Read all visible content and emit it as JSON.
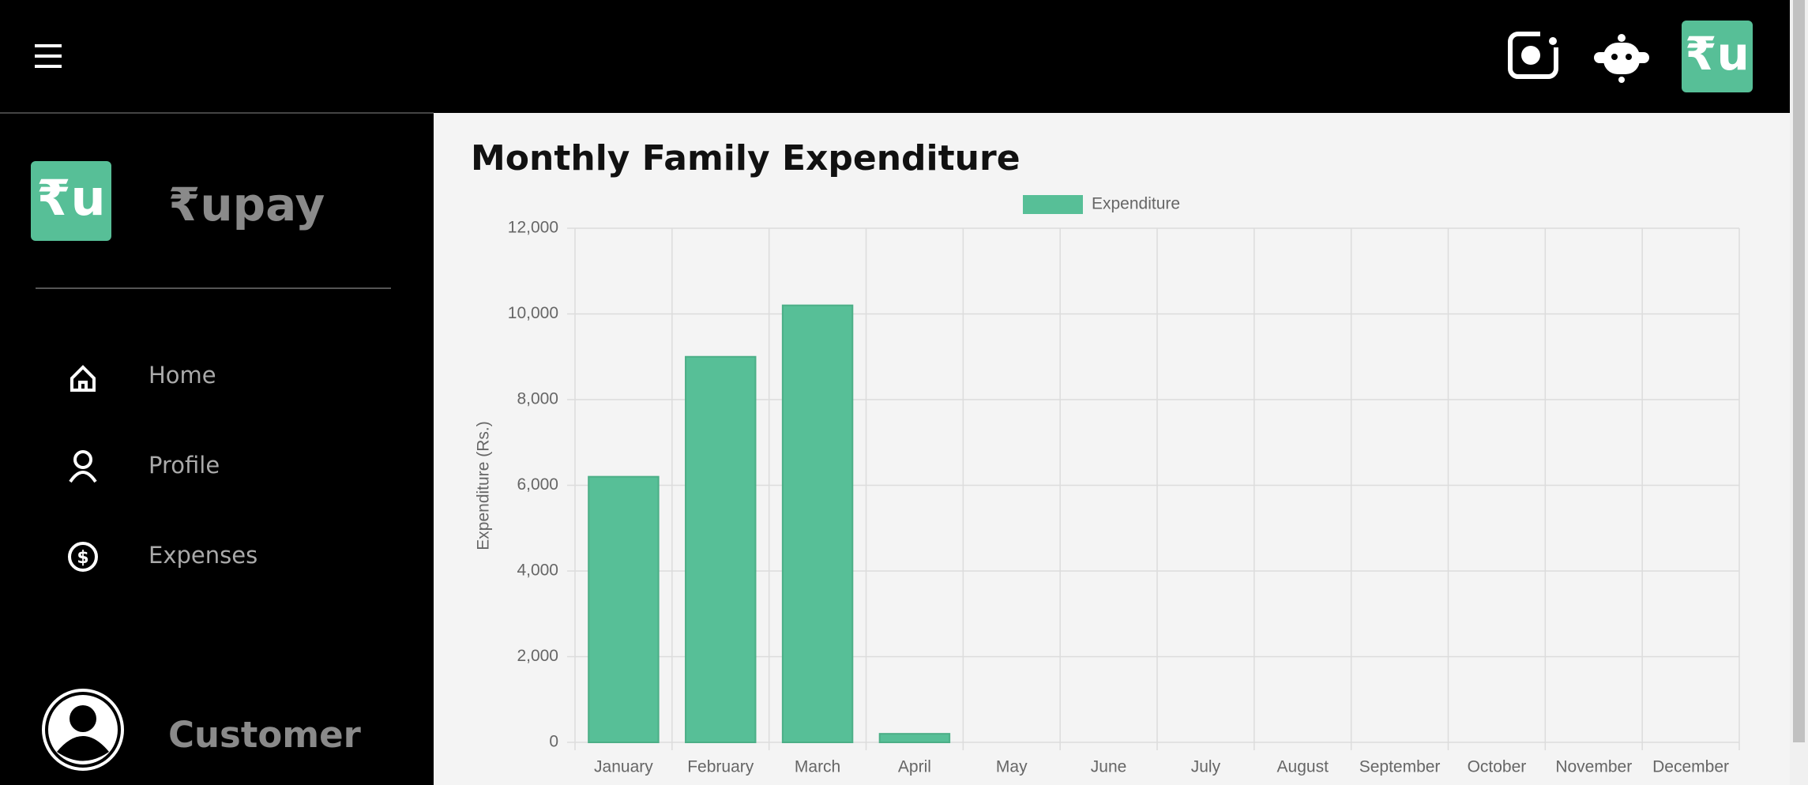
{
  "logo_text": "₹u",
  "sidebar": {
    "brand": "₹upay",
    "nav": [
      "Home",
      "Profile",
      "Expenses"
    ],
    "user": "Customer"
  },
  "chart_data": {
    "type": "bar",
    "title": "Monthly Family Expenditure",
    "y_label": "Expenditure (Rs.)",
    "categories": [
      "January",
      "February",
      "March",
      "April",
      "May",
      "June",
      "July",
      "August",
      "September",
      "October",
      "November",
      "December"
    ],
    "series": [
      {
        "name": "Expenditure",
        "color": "#57bf97",
        "values": [
          6200,
          9000,
          10200,
          200,
          0,
          0,
          0,
          0,
          0,
          0,
          0,
          0
        ]
      }
    ],
    "ylim": [
      0,
      12000
    ],
    "yticks": [
      0,
      {
        "value": 2000,
        "label": "2,000"
      },
      {
        "value": 4000,
        "label": "4,000"
      },
      {
        "value": 6000,
        "label": "6,000"
      },
      {
        "value": 8000,
        "label": "8,000"
      },
      {
        "value": 10000,
        "label": "10,000"
      },
      {
        "value": 12000,
        "label": "12,000"
      }
    ],
    "grid": true,
    "legend": "top"
  }
}
